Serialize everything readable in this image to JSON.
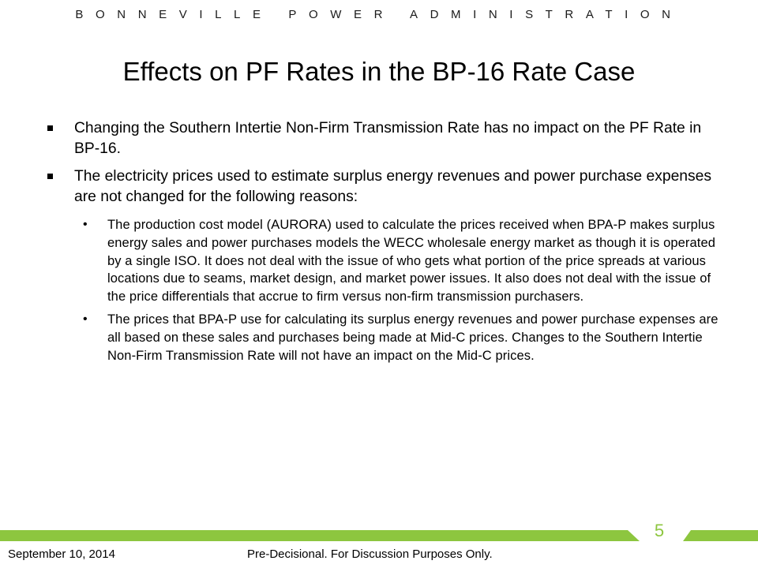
{
  "header": {
    "organization": "BONNEVILLE POWER ADMINISTRATION"
  },
  "slide": {
    "title": "Effects on PF Rates in the BP-16 Rate Case",
    "bullets": [
      {
        "text": "Changing the Southern Intertie Non-Firm Transmission Rate has no impact on the PF Rate in BP-16."
      },
      {
        "text": "The electricity prices used to estimate surplus energy revenues and power purchase expenses are not changed for the following reasons:",
        "sub": [
          "The production cost model (AURORA) used to calculate the prices received when BPA-P makes surplus energy sales and power purchases models the WECC wholesale energy market as though it is operated by a single ISO. It does not deal with the issue of who gets what portion of the price spreads at various locations due to seams, market design, and market power issues. It also does not deal with the issue of the price differentials that accrue to firm versus non-firm transmission purchasers.",
          "The prices that BPA-P use for calculating its surplus energy revenues and power purchase expenses are all based on these sales and purchases being made at Mid-C prices. Changes to the Southern Intertie Non-Firm Transmission Rate will not have an impact on the Mid-C prices."
        ]
      }
    ]
  },
  "footer": {
    "page_number": "5",
    "date": "September 10, 2014",
    "note": "Pre-Decisional. For Discussion Purposes Only.",
    "accent_color": "#8dc63f"
  }
}
